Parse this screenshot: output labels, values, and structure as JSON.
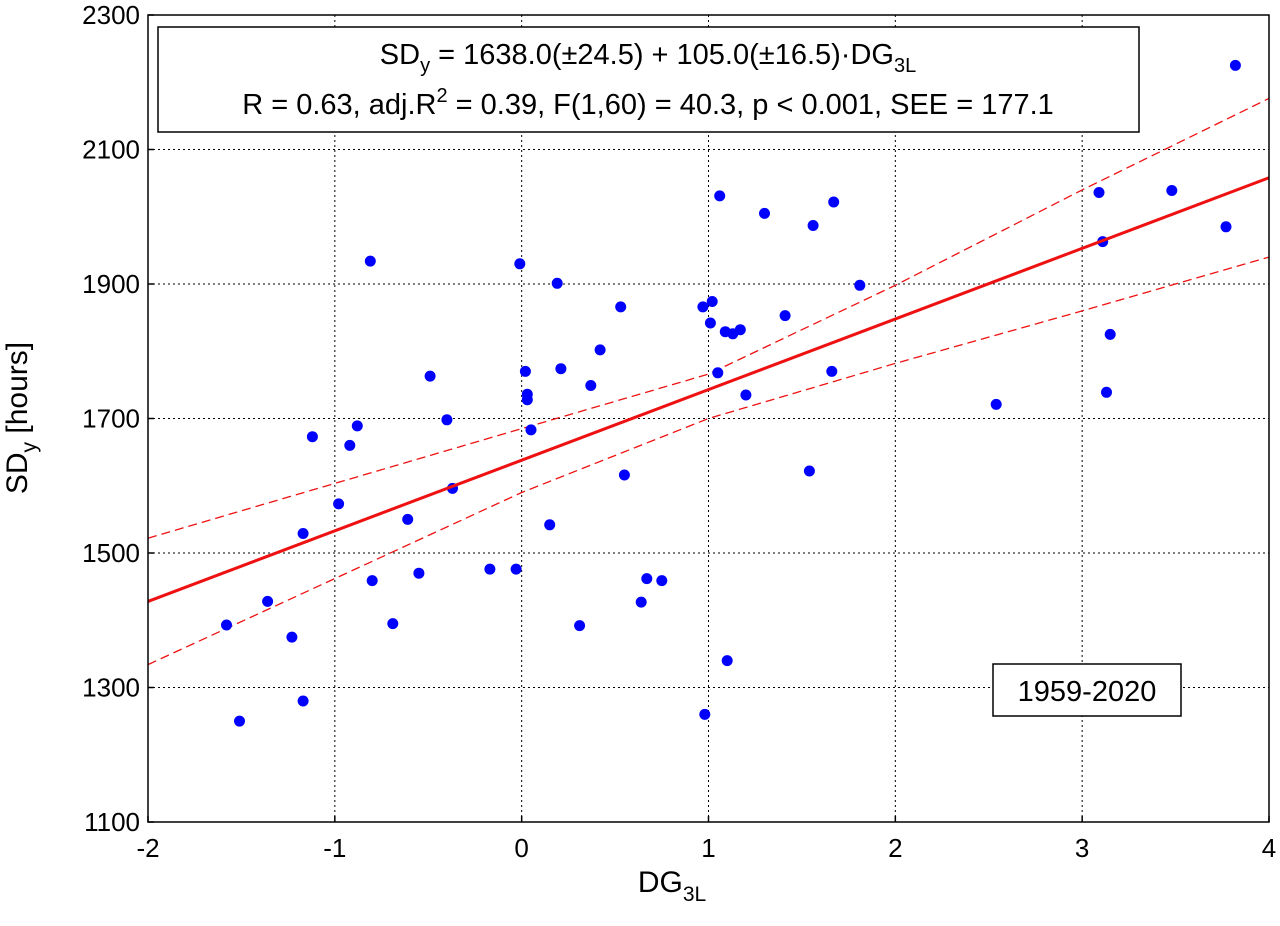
{
  "colors": {
    "points": "#0000ff",
    "fit_line": "#ee1111",
    "confidence": "#ee1111",
    "grid": "#000000",
    "frame": "#000000"
  },
  "equation": {
    "line1_prefix": "SD",
    "line1_prefix_sub": "y",
    "line1_main": " = 1638.0(±24.5) + 105.0(±16.5)·DG",
    "line1_main_sub": "3L",
    "line2_a": "R = 0.63, adj.R",
    "line2_sup": "2",
    "line2_b": " = 0.39, F(1,60) = 40.3, p < 0.001, SEE = 177.1"
  },
  "period_label": "1959-2020",
  "chart_data": {
    "type": "scatter",
    "xlabel": "DG",
    "xlabel_sub": "3L",
    "ylabel": "SD",
    "ylabel_sub": "y",
    "ylabel_suffix": " [hours]",
    "xlim": [
      -2,
      4
    ],
    "ylim": [
      1100,
      2300
    ],
    "x_ticks": [
      -2,
      -1,
      0,
      1,
      2,
      3,
      4
    ],
    "x_tick_labels": [
      "-2",
      "-1",
      "0",
      "1",
      "2",
      "3",
      "4"
    ],
    "y_ticks": [
      1100,
      1300,
      1500,
      1700,
      1900,
      2100,
      2300
    ],
    "y_tick_labels": [
      "1100",
      "1300",
      "1500",
      "1700",
      "1900",
      "2100",
      "2300"
    ],
    "grid": true,
    "regression": {
      "intercept": 1638.0,
      "slope": 105.0
    },
    "confidence_band": {
      "upper": [
        [
          -2,
          1522
        ],
        [
          0,
          1685
        ],
        [
          1,
          1766
        ],
        [
          2,
          1898
        ],
        [
          3,
          2040
        ],
        [
          4,
          2176
        ]
      ],
      "lower": [
        [
          -2,
          1334
        ],
        [
          0,
          1590
        ],
        [
          1,
          1700
        ],
        [
          2,
          1782
        ],
        [
          3,
          1860
        ],
        [
          4,
          1940
        ]
      ]
    },
    "points": [
      [
        -1.58,
        1393
      ],
      [
        -1.51,
        1250
      ],
      [
        -1.36,
        1428
      ],
      [
        -1.23,
        1375
      ],
      [
        -1.17,
        1280
      ],
      [
        -1.17,
        1529
      ],
      [
        -1.12,
        1673
      ],
      [
        -0.98,
        1573
      ],
      [
        -0.92,
        1660
      ],
      [
        -0.88,
        1689
      ],
      [
        -0.81,
        1934
      ],
      [
        -0.8,
        1459
      ],
      [
        -0.69,
        1395
      ],
      [
        -0.61,
        1550
      ],
      [
        -0.55,
        1470
      ],
      [
        -0.49,
        1763
      ],
      [
        -0.4,
        1698
      ],
      [
        -0.37,
        1596
      ],
      [
        -0.17,
        1476
      ],
      [
        -0.03,
        1476
      ],
      [
        -0.01,
        1930
      ],
      [
        0.02,
        1770
      ],
      [
        0.03,
        1736
      ],
      [
        0.03,
        1728
      ],
      [
        0.05,
        1683
      ],
      [
        0.15,
        1542
      ],
      [
        0.19,
        1901
      ],
      [
        0.21,
        1774
      ],
      [
        0.31,
        1392
      ],
      [
        0.37,
        1749
      ],
      [
        0.42,
        1802
      ],
      [
        0.53,
        1866
      ],
      [
        0.55,
        1616
      ],
      [
        0.64,
        1427
      ],
      [
        0.67,
        1462
      ],
      [
        0.75,
        1459
      ],
      [
        0.97,
        1866
      ],
      [
        0.98,
        1260
      ],
      [
        1.01,
        1842
      ],
      [
        1.02,
        1874
      ],
      [
        1.05,
        1768
      ],
      [
        1.06,
        2031
      ],
      [
        1.09,
        1829
      ],
      [
        1.1,
        1340
      ],
      [
        1.13,
        1826
      ],
      [
        1.17,
        1832
      ],
      [
        1.2,
        1735
      ],
      [
        1.3,
        2005
      ],
      [
        1.41,
        1853
      ],
      [
        1.54,
        1622
      ],
      [
        1.56,
        1987
      ],
      [
        1.66,
        1770
      ],
      [
        1.67,
        2022
      ],
      [
        1.81,
        1898
      ],
      [
        2.54,
        1721
      ],
      [
        3.09,
        2036
      ],
      [
        3.11,
        1963
      ],
      [
        3.13,
        1739
      ],
      [
        3.15,
        1825
      ],
      [
        3.48,
        2039
      ],
      [
        3.77,
        1985
      ],
      [
        3.82,
        2225
      ]
    ]
  }
}
